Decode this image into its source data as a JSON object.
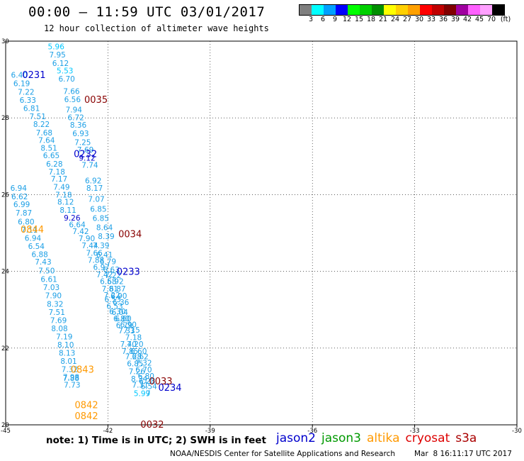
{
  "header": {
    "title": "00:00 – 11:59 UTC 03/01/2017",
    "subtitle": "12 hour collection of altimeter wave heights"
  },
  "colorbar": {
    "labels": [
      "3",
      "6",
      "9",
      "12",
      "15",
      "18",
      "21",
      "24",
      "27",
      "30",
      "33",
      "36",
      "39",
      "42",
      "45",
      "70",
      "(ft)"
    ],
    "colors": [
      "#7f7f7f",
      "#00ffff",
      "#00a0ff",
      "#0000ff",
      "#00ff00",
      "#00d000",
      "#008f00",
      "#ffff00",
      "#ffd000",
      "#ffa000",
      "#ff0000",
      "#c00000",
      "#800000",
      "#a000a0",
      "#ff60ff",
      "#ffa0ff",
      "#000000"
    ]
  },
  "note": "note:  1) Time is in UTC;  2) SWH is in feet",
  "legend": [
    {
      "label": "jason2",
      "color": "#0000cc"
    },
    {
      "label": "jason3",
      "color": "#009900"
    },
    {
      "label": "altika",
      "color": "#ff9900"
    },
    {
      "label": "cryosat",
      "color": "#dd0000"
    },
    {
      "label": "s3a",
      "color": "#aa0000"
    }
  ],
  "footer": {
    "credit": "NOAA/NESDIS Center for Satellite Applications and Research",
    "timestamp": "Mar  8 16:11:17 UTC 2017"
  },
  "chart_data": {
    "type": "scatter",
    "xlim": [
      -45,
      -30
    ],
    "ylim": [
      20,
      30
    ],
    "xticks": [
      -45,
      -42,
      -39,
      -36,
      -33,
      -30
    ],
    "yticks": [
      20,
      22,
      24,
      26,
      28,
      30
    ],
    "xtick_labels": [
      "-45",
      "-42",
      "-39",
      "-36",
      "-33",
      "-30"
    ],
    "ytick_labels": [
      "20",
      "22",
      "24",
      "26",
      "28",
      "30"
    ],
    "grid": "dotted",
    "time_labels": [
      {
        "text": "0231",
        "x": -44.17,
        "y": 29.13,
        "color": "#0000cc"
      },
      {
        "text": "0035",
        "x": -42.35,
        "y": 28.48,
        "color": "#880000"
      },
      {
        "text": "0232",
        "x": -42.66,
        "y": 27.07,
        "color": "#0000cc"
      },
      {
        "text": "0844",
        "x": -44.22,
        "y": 25.1,
        "color": "#ff9900"
      },
      {
        "text": "0034",
        "x": -41.35,
        "y": 24.98,
        "color": "#880000"
      },
      {
        "text": "0233",
        "x": -41.4,
        "y": 24.0,
        "color": "#0000cc"
      },
      {
        "text": "0843",
        "x": -42.75,
        "y": 21.45,
        "color": "#ff9900"
      },
      {
        "text": "0033",
        "x": -40.45,
        "y": 21.15,
        "color": "#880000"
      },
      {
        "text": "0234",
        "x": -40.18,
        "y": 20.98,
        "color": "#0000cc"
      },
      {
        "text": "0842",
        "x": -42.63,
        "y": 20.53,
        "color": "#ff9900"
      },
      {
        "text": "0842",
        "x": -42.63,
        "y": 20.24,
        "color": "#ff9900"
      },
      {
        "text": "0032",
        "x": -40.7,
        "y": 20.02,
        "color": "#880000"
      }
    ],
    "swh_points": [
      {
        "v": "5.96",
        "x": -43.52,
        "y": 29.86,
        "color": "#00c8ff"
      },
      {
        "v": "7.95",
        "x": -43.48,
        "y": 29.65,
        "color": "#1ea0e6"
      },
      {
        "v": "6.12",
        "x": -43.39,
        "y": 29.43,
        "color": "#1ea0e6"
      },
      {
        "v": "5.53",
        "x": -43.26,
        "y": 29.23,
        "color": "#00c8ff"
      },
      {
        "v": "6.70",
        "x": -43.21,
        "y": 29.02,
        "color": "#1ea0e6"
      },
      {
        "v": "6.40",
        "x": -44.6,
        "y": 29.12,
        "color": "#1ea0e6"
      },
      {
        "v": "6.19",
        "x": -44.53,
        "y": 28.9,
        "color": "#1ea0e6"
      },
      {
        "v": "7.66",
        "x": -43.07,
        "y": 28.7,
        "color": "#1ea0e6"
      },
      {
        "v": "7.22",
        "x": -44.4,
        "y": 28.68,
        "color": "#1ea0e6"
      },
      {
        "v": "6.56",
        "x": -43.04,
        "y": 28.48,
        "color": "#1ea0e6"
      },
      {
        "v": "6.33",
        "x": -44.35,
        "y": 28.47,
        "color": "#1ea0e6"
      },
      {
        "v": "7.94",
        "x": -43.0,
        "y": 28.22,
        "color": "#1ea0e6"
      },
      {
        "v": "6.81",
        "x": -44.24,
        "y": 28.25,
        "color": "#1ea0e6"
      },
      {
        "v": "6.72",
        "x": -42.94,
        "y": 28.01,
        "color": "#1ea0e6"
      },
      {
        "v": "7.51",
        "x": -44.06,
        "y": 28.04,
        "color": "#1ea0e6"
      },
      {
        "v": "8.36",
        "x": -42.87,
        "y": 27.82,
        "color": "#1ea0e6"
      },
      {
        "v": "8.22",
        "x": -43.95,
        "y": 27.84,
        "color": "#1ea0e6"
      },
      {
        "v": "7.68",
        "x": -43.87,
        "y": 27.62,
        "color": "#1ea0e6"
      },
      {
        "v": "6.93",
        "x": -42.8,
        "y": 27.6,
        "color": "#1ea0e6"
      },
      {
        "v": "7.64",
        "x": -43.8,
        "y": 27.42,
        "color": "#1ea0e6"
      },
      {
        "v": "7.25",
        "x": -42.74,
        "y": 27.37,
        "color": "#1ea0e6"
      },
      {
        "v": "8.51",
        "x": -43.73,
        "y": 27.22,
        "color": "#1ea0e6"
      },
      {
        "v": "7.69",
        "x": -42.66,
        "y": 27.17,
        "color": "#1ea0e6"
      },
      {
        "v": "6.65",
        "x": -43.66,
        "y": 27.02,
        "color": "#1ea0e6"
      },
      {
        "v": "9.12",
        "x": -42.61,
        "y": 26.96,
        "color": "#0000cc"
      },
      {
        "v": "6.28",
        "x": -43.57,
        "y": 26.8,
        "color": "#1ea0e6"
      },
      {
        "v": "7.74",
        "x": -42.53,
        "y": 26.77,
        "color": "#1ea0e6"
      },
      {
        "v": "7.18",
        "x": -43.5,
        "y": 26.6,
        "color": "#1ea0e6"
      },
      {
        "v": "7.17",
        "x": -43.43,
        "y": 26.41,
        "color": "#1ea0e6"
      },
      {
        "v": "6.92",
        "x": -42.43,
        "y": 26.37,
        "color": "#1ea0e6"
      },
      {
        "v": "7.49",
        "x": -43.36,
        "y": 26.2,
        "color": "#1ea0e6"
      },
      {
        "v": "8.17",
        "x": -42.39,
        "y": 26.17,
        "color": "#1ea0e6"
      },
      {
        "v": "6.94",
        "x": -44.62,
        "y": 26.17,
        "color": "#1ea0e6"
      },
      {
        "v": "7.18",
        "x": -43.3,
        "y": 26.0,
        "color": "#1ea0e6"
      },
      {
        "v": "6.62",
        "x": -44.59,
        "y": 25.95,
        "color": "#1ea0e6"
      },
      {
        "v": "8.12",
        "x": -43.24,
        "y": 25.81,
        "color": "#1ea0e6"
      },
      {
        "v": "7.07",
        "x": -42.34,
        "y": 25.89,
        "color": "#1ea0e6"
      },
      {
        "v": "6.99",
        "x": -44.53,
        "y": 25.75,
        "color": "#1ea0e6"
      },
      {
        "v": "8.11",
        "x": -43.17,
        "y": 25.6,
        "color": "#1ea0e6"
      },
      {
        "v": "6.85",
        "x": -42.28,
        "y": 25.63,
        "color": "#1ea0e6"
      },
      {
        "v": "9.26",
        "x": -43.05,
        "y": 25.4,
        "color": "#0000cc"
      },
      {
        "v": "7.87",
        "x": -44.47,
        "y": 25.53,
        "color": "#1ea0e6"
      },
      {
        "v": "6.85",
        "x": -42.21,
        "y": 25.39,
        "color": "#1ea0e6"
      },
      {
        "v": "6.64",
        "x": -42.9,
        "y": 25.22,
        "color": "#1ea0e6"
      },
      {
        "v": "6.80",
        "x": -44.4,
        "y": 25.3,
        "color": "#1ea0e6"
      },
      {
        "v": "8.64",
        "x": -42.1,
        "y": 25.15,
        "color": "#1ea0e6"
      },
      {
        "v": "7.42",
        "x": -42.8,
        "y": 25.05,
        "color": "#1ea0e6"
      },
      {
        "v": "7.11",
        "x": -44.3,
        "y": 25.08,
        "color": "#1ea0e6"
      },
      {
        "v": "8.39",
        "x": -42.05,
        "y": 24.92,
        "color": "#1ea0e6"
      },
      {
        "v": "7.90",
        "x": -42.62,
        "y": 24.86,
        "color": "#1ea0e6"
      },
      {
        "v": "6.94",
        "x": -44.2,
        "y": 24.87,
        "color": "#1ea0e6"
      },
      {
        "v": "7.44",
        "x": -42.53,
        "y": 24.68,
        "color": "#1ea0e6"
      },
      {
        "v": "7.39",
        "x": -42.2,
        "y": 24.68,
        "color": "#1ea0e6"
      },
      {
        "v": "6.54",
        "x": -44.1,
        "y": 24.66,
        "color": "#1ea0e6"
      },
      {
        "v": "7.66",
        "x": -42.4,
        "y": 24.48,
        "color": "#1ea0e6"
      },
      {
        "v": "6.41",
        "x": -42.1,
        "y": 24.44,
        "color": "#1ea0e6"
      },
      {
        "v": "6.88",
        "x": -44.0,
        "y": 24.45,
        "color": "#1ea0e6"
      },
      {
        "v": "7.88",
        "x": -42.35,
        "y": 24.3,
        "color": "#1ea0e6"
      },
      {
        "v": "6.79",
        "x": -42.0,
        "y": 24.26,
        "color": "#1ea0e6"
      },
      {
        "v": "6.97",
        "x": -42.19,
        "y": 24.11,
        "color": "#1ea0e6"
      },
      {
        "v": "7.43",
        "x": -43.9,
        "y": 24.25,
        "color": "#1ea0e6"
      },
      {
        "v": "6.63",
        "x": -41.9,
        "y": 24.05,
        "color": "#1ea0e6"
      },
      {
        "v": "7.42",
        "x": -42.1,
        "y": 23.92,
        "color": "#1ea0e6"
      },
      {
        "v": "7.50",
        "x": -43.8,
        "y": 24.02,
        "color": "#1ea0e6"
      },
      {
        "v": "7.22",
        "x": -41.85,
        "y": 23.9,
        "color": "#1ea0e6"
      },
      {
        "v": "6.58",
        "x": -41.99,
        "y": 23.74,
        "color": "#1ea0e6"
      },
      {
        "v": "6.92",
        "x": -41.78,
        "y": 23.74,
        "color": "#1ea0e6"
      },
      {
        "v": "6.61",
        "x": -43.73,
        "y": 23.8,
        "color": "#1ea0e6"
      },
      {
        "v": "7.81",
        "x": -41.94,
        "y": 23.55,
        "color": "#1ea0e6"
      },
      {
        "v": "6.87",
        "x": -41.72,
        "y": 23.55,
        "color": "#1ea0e6"
      },
      {
        "v": "7.03",
        "x": -43.66,
        "y": 23.59,
        "color": "#1ea0e6"
      },
      {
        "v": "7.22",
        "x": -41.88,
        "y": 23.38,
        "color": "#1ea0e6"
      },
      {
        "v": "6.90",
        "x": -41.68,
        "y": 23.36,
        "color": "#1ea0e6"
      },
      {
        "v": "7.90",
        "x": -43.6,
        "y": 23.37,
        "color": "#1ea0e6"
      },
      {
        "v": "6.53",
        "x": -41.86,
        "y": 23.27,
        "color": "#1ea0e6"
      },
      {
        "v": "6.36",
        "x": -41.62,
        "y": 23.2,
        "color": "#1ea0e6"
      },
      {
        "v": "8.32",
        "x": -43.55,
        "y": 23.15,
        "color": "#1ea0e6"
      },
      {
        "v": "6.53",
        "x": -41.8,
        "y": 23.1,
        "color": "#1ea0e6"
      },
      {
        "v": "6.04",
        "x": -41.65,
        "y": 22.94,
        "color": "#1ea0e6"
      },
      {
        "v": "6.30",
        "x": -41.72,
        "y": 22.96,
        "color": "#1ea0e6"
      },
      {
        "v": "7.51",
        "x": -43.5,
        "y": 22.94,
        "color": "#1ea0e6"
      },
      {
        "v": "6.80",
        "x": -41.6,
        "y": 22.77,
        "color": "#1ea0e6"
      },
      {
        "v": "6.60",
        "x": -41.55,
        "y": 22.77,
        "color": "#1ea0e6"
      },
      {
        "v": "7.69",
        "x": -43.45,
        "y": 22.73,
        "color": "#1ea0e6"
      },
      {
        "v": "6.79",
        "x": -41.52,
        "y": 22.6,
        "color": "#1ea0e6"
      },
      {
        "v": "6.90",
        "x": -41.4,
        "y": 22.62,
        "color": "#1ea0e6"
      },
      {
        "v": "8.08",
        "x": -43.42,
        "y": 22.51,
        "color": "#1ea0e6"
      },
      {
        "v": "7.33",
        "x": -41.45,
        "y": 22.46,
        "color": "#1ea0e6"
      },
      {
        "v": "7.15",
        "x": -41.3,
        "y": 22.48,
        "color": "#1ea0e6"
      },
      {
        "v": "7.19",
        "x": -43.28,
        "y": 22.3,
        "color": "#1ea0e6"
      },
      {
        "v": "7.18",
        "x": -41.25,
        "y": 22.28,
        "color": "#1ea0e6"
      },
      {
        "v": "7.40",
        "x": -41.4,
        "y": 22.11,
        "color": "#1ea0e6"
      },
      {
        "v": "7.20",
        "x": -41.2,
        "y": 22.11,
        "color": "#1ea0e6"
      },
      {
        "v": "8.10",
        "x": -43.24,
        "y": 22.09,
        "color": "#1ea0e6"
      },
      {
        "v": "7.85",
        "x": -41.35,
        "y": 21.92,
        "color": "#1ea0e6"
      },
      {
        "v": "6.60",
        "x": -41.1,
        "y": 21.92,
        "color": "#1ea0e6"
      },
      {
        "v": "8.13",
        "x": -43.2,
        "y": 21.88,
        "color": "#1ea0e6"
      },
      {
        "v": "7.28",
        "x": -41.25,
        "y": 21.78,
        "color": "#1ea0e6"
      },
      {
        "v": "6.62",
        "x": -41.05,
        "y": 21.78,
        "color": "#1ea0e6"
      },
      {
        "v": "8.01",
        "x": -43.15,
        "y": 21.66,
        "color": "#1ea0e6"
      },
      {
        "v": "6.85",
        "x": -41.2,
        "y": 21.6,
        "color": "#1ea0e6"
      },
      {
        "v": "7.32",
        "x": -40.95,
        "y": 21.62,
        "color": "#1ea0e6"
      },
      {
        "v": "7.32",
        "x": -43.12,
        "y": 21.45,
        "color": "#1ea0e6"
      },
      {
        "v": "6.70",
        "x": -40.95,
        "y": 21.44,
        "color": "#1ea0e6"
      },
      {
        "v": "7.26",
        "x": -41.15,
        "y": 21.4,
        "color": "#1ea0e6"
      },
      {
        "v": "7.98",
        "x": -43.08,
        "y": 21.25,
        "color": "#1ea0e6"
      },
      {
        "v": "7.88",
        "x": -43.08,
        "y": 21.22,
        "color": "#1ea0e6"
      },
      {
        "v": "6.80",
        "x": -40.88,
        "y": 21.28,
        "color": "#1ea0e6"
      },
      {
        "v": "8.34",
        "x": -41.08,
        "y": 21.2,
        "color": "#1ea0e6"
      },
      {
        "v": "6.28",
        "x": -40.85,
        "y": 21.15,
        "color": "#1ea0e6"
      },
      {
        "v": "7.73",
        "x": -43.05,
        "y": 21.04,
        "color": "#1ea0e6"
      },
      {
        "v": "7.31",
        "x": -41.05,
        "y": 21.04,
        "color": "#1ea0e6"
      },
      {
        "v": "6.54",
        "x": -40.8,
        "y": 21.01,
        "color": "#1ea0e6"
      },
      {
        "v": "5.99",
        "x": -41.0,
        "y": 20.82,
        "color": "#00c8ff"
      },
      {
        "v": "7",
        "x": -40.82,
        "y": 20.82,
        "color": "#1ea0e6"
      }
    ]
  }
}
